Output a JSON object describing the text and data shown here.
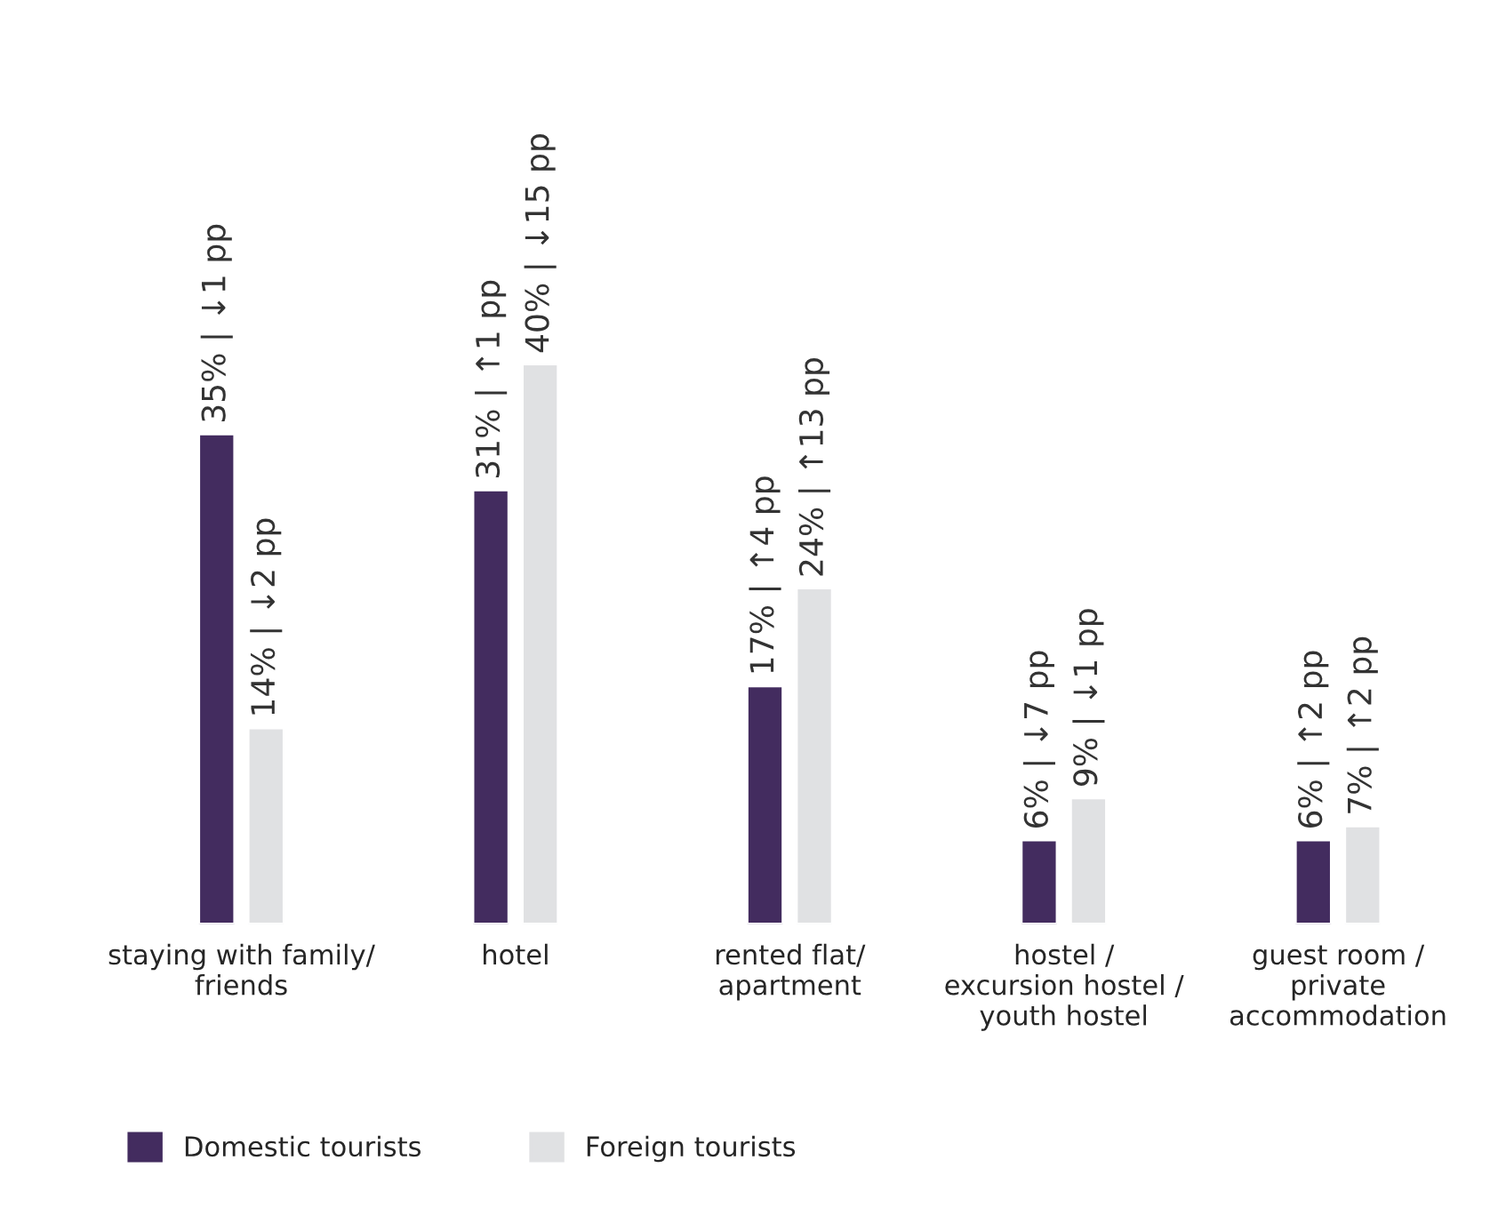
{
  "chart_data": {
    "type": "bar",
    "categories": [
      "staying with family/\nfriends",
      "hotel",
      "rented flat/\napartment",
      "hostel /\nexcursion hostel /\nyouth hostel",
      "guest room /\nprivate\naccommodation"
    ],
    "series": [
      {
        "name": "Domestic tourists",
        "color": "#432c5f",
        "values": [
          35,
          31,
          17,
          6,
          6
        ],
        "value_labels": [
          "35% | ↓1 pp",
          "31% | ↑1 pp",
          "17% | ↑4 pp",
          "6% | ↓7 pp",
          "6% | ↑2 pp"
        ]
      },
      {
        "name": "Foreign tourists",
        "color": "#e0e1e3",
        "values": [
          14,
          40,
          24,
          9,
          7
        ],
        "value_labels": [
          "14% | ↓2 pp",
          "40% | ↓15 pp",
          "24% | ↑13 pp",
          "9% | ↓1 pp",
          "7% | ↑2 pp"
        ]
      }
    ],
    "tick_labels": "x",
    "legend": "bottom left"
  }
}
